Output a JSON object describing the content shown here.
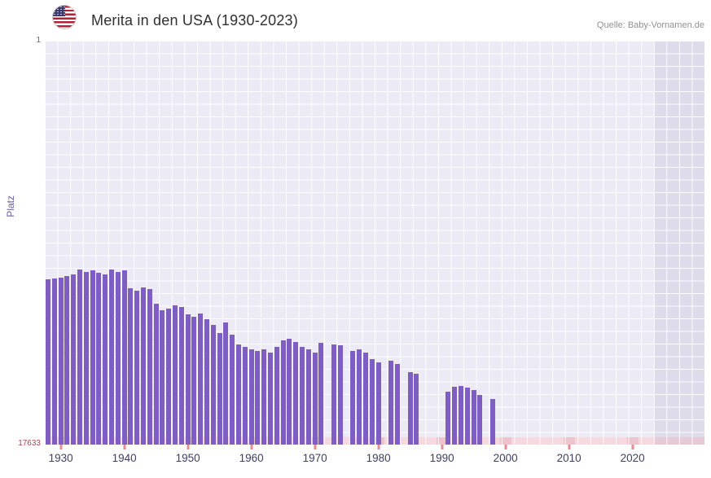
{
  "header": {
    "title": "Merita in den USA (1930-2023)",
    "source": "Quelle: Baby-Vornamen.de",
    "flag_icon": "us-flag"
  },
  "axes": {
    "y_label": "Platz",
    "y_top": "1",
    "y_bottom": "17633",
    "x_ticks": [
      "1930",
      "1940",
      "1950",
      "1960",
      "1970",
      "1980",
      "1990",
      "2000",
      "2010",
      "2020"
    ]
  },
  "colors": {
    "bar": "#7e5ec2",
    "plot_bg": "#ecebf5",
    "grid": "#ffffff",
    "missing_strip": "#f5d9df",
    "missing_strip_dark": "#edc3cd",
    "tick_mark": "#ea8a94",
    "y_label": "#6c5aa8",
    "y_min_label": "#a04a52"
  },
  "chart_data": {
    "type": "bar",
    "title": "Merita in den USA (1930-2023)",
    "xlabel": "",
    "ylabel": "Platz",
    "legend": false,
    "grid": true,
    "y_axis": {
      "min": 1,
      "max": 17633,
      "inverted": true,
      "note": "rank chart: rank 1 at top, bars rise from bottom; taller bar = better rank"
    },
    "x_ticks": [
      1930,
      1940,
      1950,
      1960,
      1970,
      1980,
      1990,
      2000,
      2010,
      2020
    ],
    "years": [
      1928,
      1929,
      1930,
      1931,
      1932,
      1933,
      1934,
      1935,
      1936,
      1937,
      1938,
      1939,
      1940,
      1941,
      1942,
      1943,
      1944,
      1945,
      1946,
      1947,
      1948,
      1949,
      1950,
      1951,
      1952,
      1953,
      1954,
      1955,
      1956,
      1957,
      1958,
      1959,
      1960,
      1961,
      1962,
      1963,
      1964,
      1965,
      1966,
      1967,
      1968,
      1969,
      1970,
      1971,
      1972,
      1973,
      1974,
      1975,
      1976,
      1977,
      1978,
      1979,
      1980,
      1981,
      1982,
      1983,
      1984,
      1985,
      1986,
      1987,
      1988,
      1989,
      1990,
      1991,
      1992,
      1993,
      1994,
      1995,
      1996,
      1997,
      1998,
      1999,
      2000,
      2001,
      2002,
      2003,
      2004,
      2005,
      2006,
      2007,
      2008,
      2009,
      2010,
      2011,
      2012,
      2013,
      2014,
      2015,
      2016,
      2017,
      2018,
      2019,
      2020,
      2021,
      2022,
      2023
    ],
    "ranks": [
      10400,
      10370,
      10350,
      10280,
      10210,
      9980,
      10080,
      10010,
      10120,
      10190,
      9980,
      10080,
      10010,
      10800,
      10900,
      10760,
      10830,
      11470,
      11760,
      11690,
      11540,
      11620,
      11930,
      12040,
      11900,
      12150,
      12400,
      12760,
      12290,
      12820,
      13250,
      13360,
      13470,
      13540,
      13470,
      13610,
      13360,
      13070,
      13000,
      13140,
      13360,
      13470,
      13610,
      13180,
      null,
      13250,
      13300,
      null,
      13540,
      13470,
      13610,
      13890,
      14030,
      null,
      13960,
      14100,
      null,
      14460,
      14530,
      null,
      null,
      null,
      null,
      15320,
      15100,
      15070,
      15140,
      15250,
      15460,
      null,
      15650,
      null,
      null,
      null,
      null,
      null,
      null,
      null,
      null,
      null,
      null,
      null,
      null,
      null,
      null,
      null,
      null,
      null,
      null,
      null,
      null,
      null,
      null,
      null,
      null,
      null
    ]
  }
}
